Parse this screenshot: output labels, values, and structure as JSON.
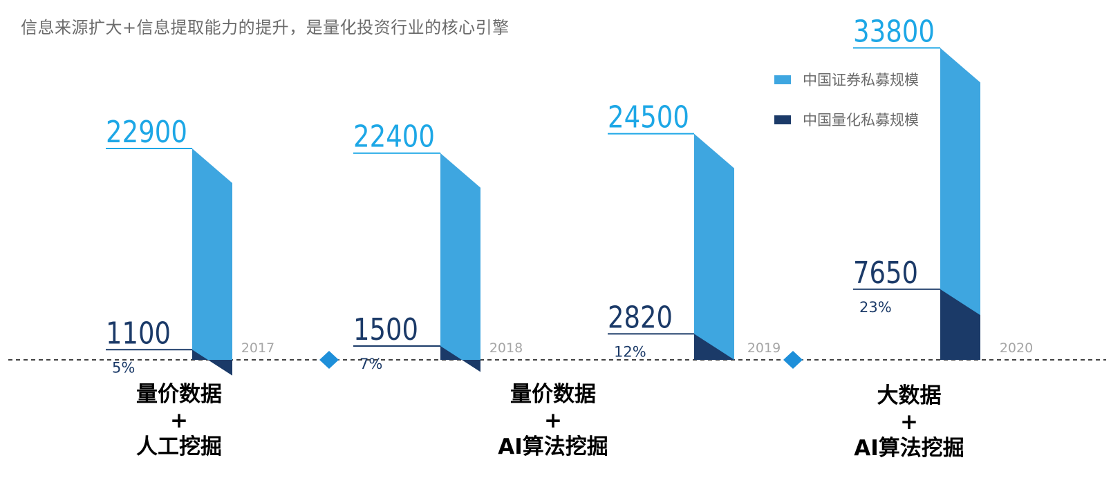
{
  "headline": "信息来源扩大+信息提取能力的提升，是量化投资行业的核心引擎",
  "colors": {
    "total": "#3ea6e0",
    "quant": "#1b3a68",
    "total_label": "#1da7e6",
    "quant_label": "#1b3a68",
    "axis": "#000000",
    "year": "#a6a6a6",
    "marker": "#1e8fd9"
  },
  "legend": [
    {
      "name": "中国证券私募规模",
      "color": "#3ea6e0"
    },
    {
      "name": "中国量化私募规模",
      "color": "#1b3a68"
    }
  ],
  "chart_data": {
    "type": "bar",
    "categories": [
      "2017",
      "2018",
      "2019",
      "2020"
    ],
    "series": [
      {
        "name": "中国证券私募规模",
        "values": [
          22900,
          22400,
          24500,
          33800
        ]
      },
      {
        "name": "中国量化私募规模",
        "values": [
          1100,
          1500,
          2820,
          7650
        ]
      }
    ],
    "share_labels": [
      "5%",
      "7%",
      "12%",
      "23%"
    ]
  },
  "captions": [
    {
      "line1": "量价数据",
      "line2": "+",
      "line3": "人工挖掘"
    },
    {
      "line1": "量价数据",
      "line2": "+",
      "line3": "AI算法挖掘"
    },
    {
      "line1": "大数据",
      "line2": "+",
      "line3": "AI算法挖掘"
    }
  ]
}
